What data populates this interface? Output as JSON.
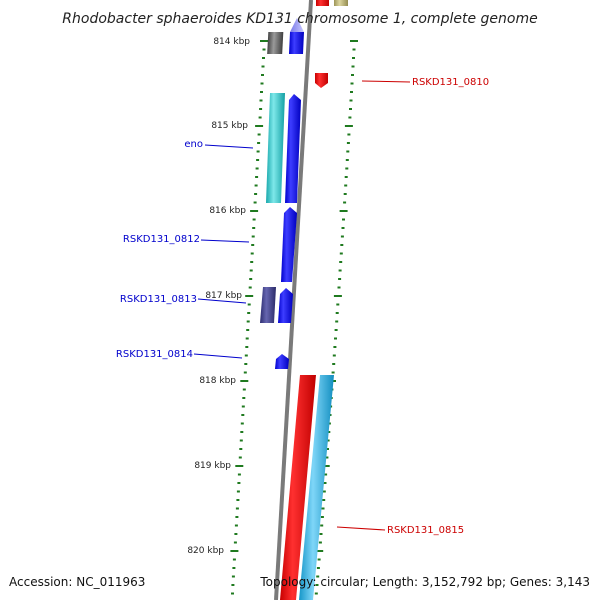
{
  "title": "Rhodobacter sphaeroides KD131 chromosome 1, complete genome",
  "footer": {
    "accession": "Accession: NC_011963",
    "topology": "Topology: circular; Length: 3,152,792 bp; Genes: 3,143"
  },
  "ruler": {
    "labels": [
      "814 kbp",
      "815 kbp",
      "816 kbp",
      "817 kbp",
      "818 kbp",
      "819 kbp",
      "820 kbp"
    ]
  },
  "gene_labels": {
    "rskd0810": "RSKD131_0810",
    "eno": "eno",
    "rskd0812": "RSKD131_0812",
    "rskd0813": "RSKD131_0813",
    "rskd0814": "RSKD131_0814",
    "rskd0815": "RSKD131_0815"
  },
  "colors": {
    "backbone": "#7a7a7a",
    "tick": "#1f7a1f",
    "forward_label": "#0000cc",
    "reverse_label": "#cc0000",
    "gene_blue": "#0000ee",
    "gene_red": "#ee0000",
    "gene_cyan": "#22c4c8",
    "gene_sky": "#1fb0e8",
    "gene_indigo": "#3c3c8c",
    "gene_grey": "#555555",
    "gene_olive": "#b8b070"
  }
}
